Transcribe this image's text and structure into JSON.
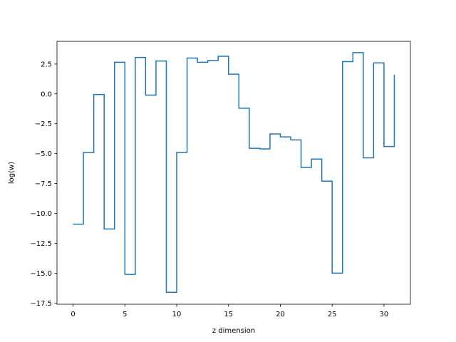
{
  "chart_data": {
    "type": "line",
    "drawstyle": "steps-post",
    "title": "",
    "xlabel": "z dimension",
    "ylabel": "log(w)",
    "xlim": [
      -1.55,
      32.55
    ],
    "ylim": [
      -17.6,
      4.4
    ],
    "xticks": [
      0,
      5,
      10,
      15,
      20,
      25,
      30
    ],
    "xtick_labels": [
      "0",
      "5",
      "10",
      "15",
      "20",
      "25",
      "30"
    ],
    "yticks": [
      2.5,
      0.0,
      -2.5,
      -5.0,
      -7.5,
      -10.0,
      -12.5,
      -15.0,
      -17.5
    ],
    "ytick_labels": [
      "2.5",
      "0.0",
      "−2.5",
      "−5.0",
      "−7.5",
      "−10.0",
      "−12.5",
      "−15.0",
      "−17.5"
    ],
    "grid": false,
    "legend": false,
    "series": [
      {
        "color": "#1f77b4",
        "x": [
          0,
          1,
          2,
          3,
          4,
          5,
          6,
          7,
          8,
          9,
          10,
          11,
          12,
          13,
          14,
          15,
          16,
          17,
          18,
          19,
          20,
          21,
          22,
          23,
          24,
          25,
          26,
          27,
          28,
          29,
          30,
          31
        ],
        "y": [
          -10.9,
          -4.9,
          -0.05,
          -11.3,
          2.65,
          -15.1,
          3.05,
          -0.1,
          2.75,
          -16.6,
          -4.9,
          3.0,
          2.65,
          2.8,
          3.15,
          1.65,
          -1.2,
          -4.55,
          -4.6,
          -3.35,
          -3.6,
          -3.85,
          -6.15,
          -5.45,
          -7.3,
          -15.0,
          2.7,
          3.45,
          -5.35,
          2.6,
          -4.4,
          1.6
        ]
      }
    ]
  }
}
